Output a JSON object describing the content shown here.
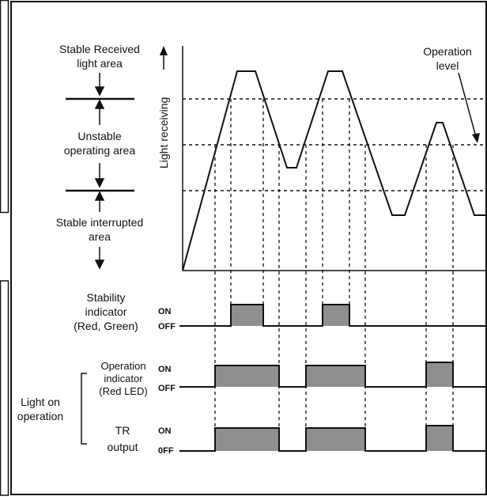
{
  "zones": {
    "stable_received": [
      "Stable Received",
      "light area"
    ],
    "unstable": [
      "Unstable",
      "operating area"
    ],
    "stable_interrupted": [
      "Stable interrupted",
      "area"
    ]
  },
  "axis": {
    "ylabel": "Light receiving"
  },
  "operation_level": [
    "Operation",
    "level"
  ],
  "stability": {
    "label": [
      "Stability",
      "indicator",
      "(Red, Green)"
    ],
    "on": "ON",
    "off": "OFF"
  },
  "operation_indicator": {
    "label": [
      "Operation",
      "indicator",
      "(Red LED)"
    ],
    "on": "ON",
    "off": "OFF"
  },
  "tr_output": {
    "label": [
      "TR",
      "output"
    ],
    "on": "ON",
    "off": "0FF"
  },
  "group_label": [
    "Light on",
    "operation"
  ],
  "colors": {
    "pulse_fill": "#8f8f8f",
    "line": "#111111"
  }
}
